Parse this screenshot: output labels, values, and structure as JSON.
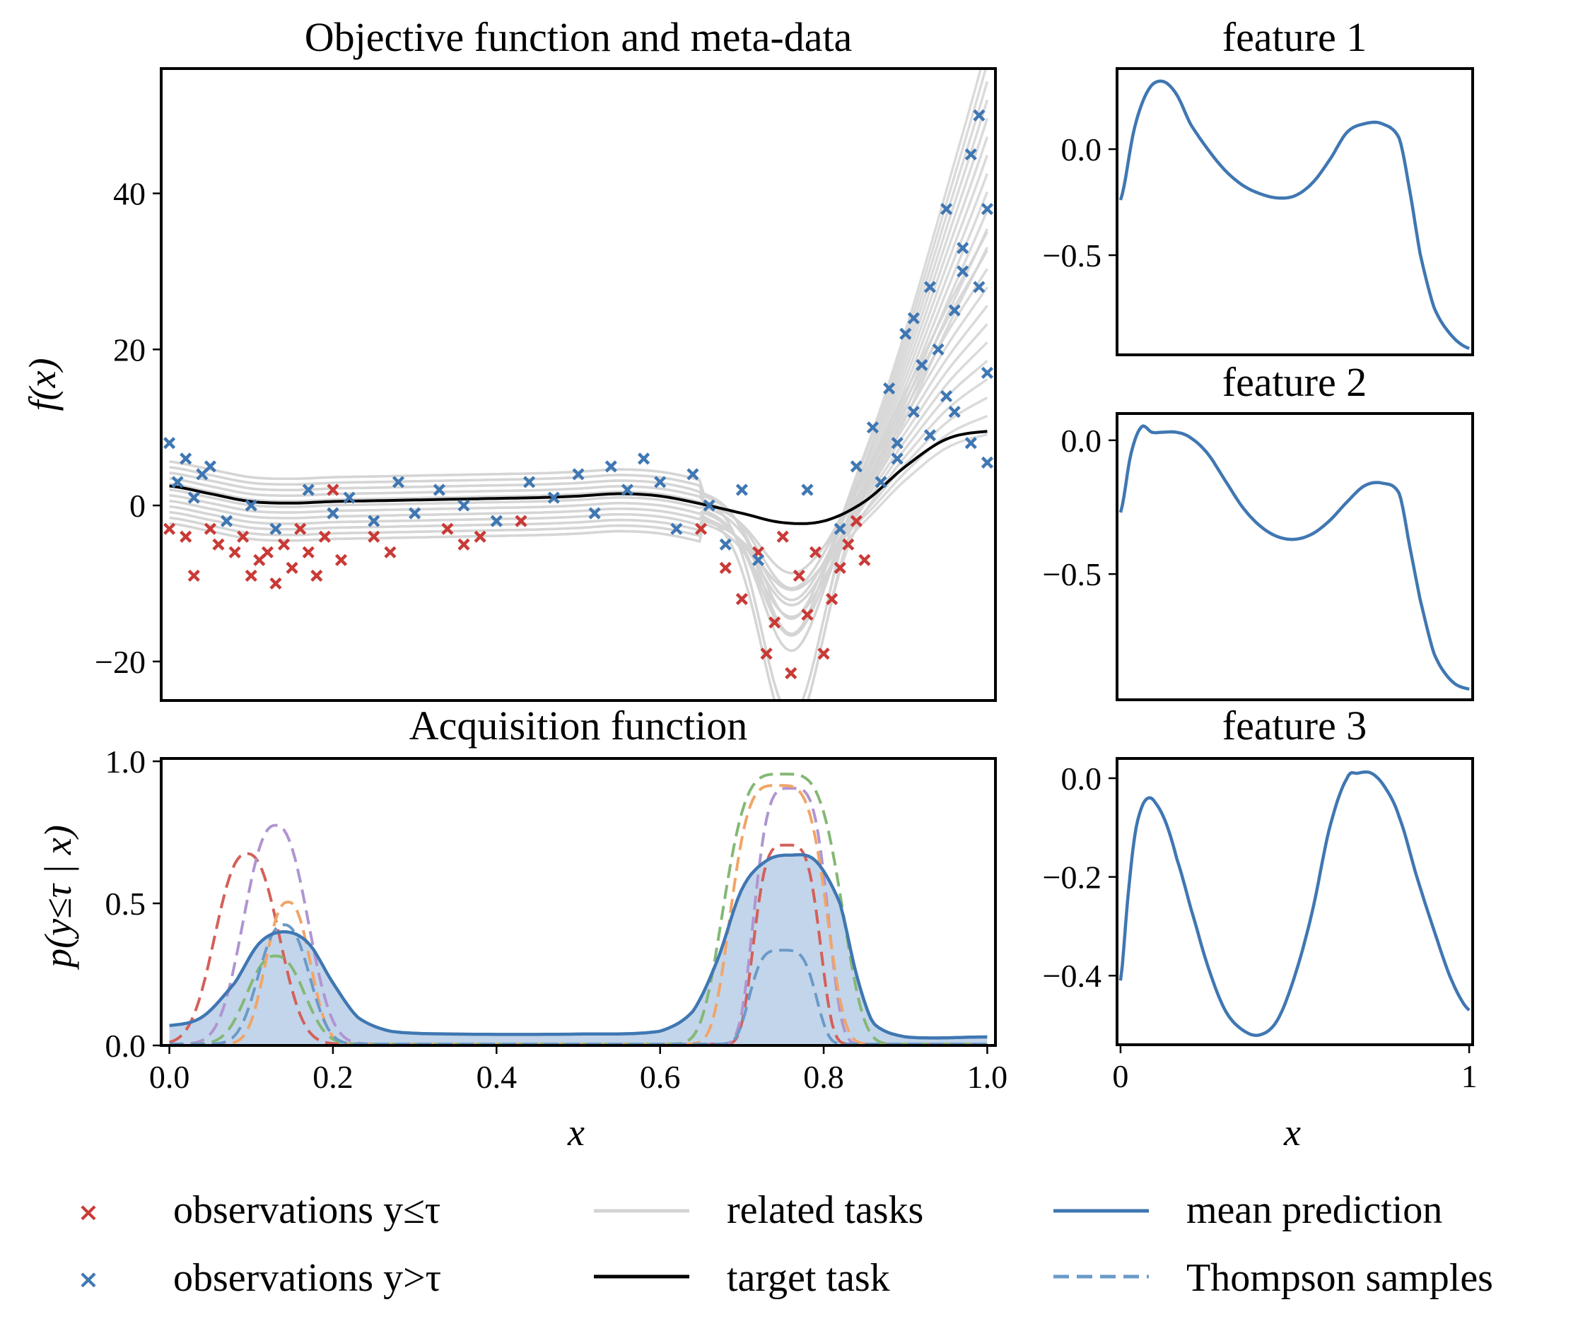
{
  "figure": {
    "colors": {
      "obs_low": "#c93a36",
      "obs_high": "#3f77b2",
      "related": "#d4d4d4",
      "target": "#000000",
      "mean": "#3f77b2",
      "fill": "#c3d5ea",
      "ts_blue": "#6a9ac8",
      "ts_red": "#d4605a",
      "ts_purple": "#b095d1",
      "ts_orange": "#f1a567",
      "ts_green": "#84b876"
    },
    "legend": {
      "obs_low": "observations y≤τ",
      "obs_high": "observations y>τ",
      "related": "related tasks",
      "target": "target task",
      "mean": "mean prediction",
      "thompson": "Thompson samples"
    }
  },
  "chart_data": [
    {
      "id": "objective",
      "type": "line",
      "title": "Objective function and meta-data",
      "ylabel": "f(x)",
      "xlim": [
        -0.01,
        1.01
      ],
      "ylim": [
        -25,
        56
      ],
      "yticks": [
        "40",
        "20",
        "0",
        "−20"
      ],
      "ytick_values": [
        40,
        20,
        0,
        -20
      ],
      "target_task": {
        "x": [
          0.0,
          0.05,
          0.1,
          0.15,
          0.2,
          0.25,
          0.3,
          0.35,
          0.4,
          0.45,
          0.5,
          0.55,
          0.6,
          0.65,
          0.7,
          0.75,
          0.8,
          0.85,
          0.9,
          0.95,
          1.0
        ],
        "y": [
          2.5,
          1.5,
          0.5,
          0.3,
          0.5,
          0.6,
          0.7,
          0.8,
          0.9,
          1.0,
          1.2,
          1.5,
          1.2,
          0.2,
          -1.0,
          -2.2,
          -2.0,
          0.5,
          5.0,
          8.5,
          9.5
        ]
      },
      "related_tasks_count": 24,
      "observations_low": {
        "x": [
          0.0,
          0.02,
          0.03,
          0.05,
          0.06,
          0.08,
          0.09,
          0.1,
          0.11,
          0.12,
          0.13,
          0.14,
          0.15,
          0.16,
          0.17,
          0.18,
          0.19,
          0.2,
          0.21,
          0.25,
          0.27,
          0.34,
          0.36,
          0.38,
          0.43,
          0.65,
          0.68,
          0.7,
          0.72,
          0.73,
          0.74,
          0.75,
          0.76,
          0.77,
          0.78,
          0.79,
          0.8,
          0.81,
          0.82,
          0.83,
          0.84,
          0.85
        ],
        "y": [
          -3.0,
          -4.0,
          -9.0,
          -3.0,
          -5.0,
          -6.0,
          -4.0,
          -9.0,
          -7.0,
          -6.0,
          -10.0,
          -5.0,
          -8.0,
          -3.0,
          -6.0,
          -9.0,
          -4.0,
          2.0,
          -7.0,
          -4.0,
          -6.0,
          -3.0,
          -5.0,
          -4.0,
          -2.0,
          -3.0,
          -8.0,
          -12.0,
          -6.0,
          -19.0,
          -15.0,
          -4.0,
          -21.5,
          -9.0,
          -14.0,
          -6.0,
          -19.0,
          -12.0,
          -8.0,
          -5.0,
          -2.0,
          -7.0
        ]
      },
      "observations_high": {
        "x": [
          0.0,
          0.01,
          0.02,
          0.03,
          0.04,
          0.05,
          0.07,
          0.1,
          0.13,
          0.17,
          0.2,
          0.22,
          0.25,
          0.28,
          0.3,
          0.33,
          0.36,
          0.4,
          0.44,
          0.47,
          0.5,
          0.52,
          0.54,
          0.56,
          0.58,
          0.6,
          0.62,
          0.64,
          0.66,
          0.68,
          0.7,
          0.72,
          0.78,
          0.82,
          0.84,
          0.86,
          0.87,
          0.88,
          0.89,
          0.9,
          0.91,
          0.92,
          0.93,
          0.94,
          0.95,
          0.96,
          0.97,
          0.98,
          0.99,
          1.0,
          1.0,
          0.99,
          0.97,
          0.95,
          0.93,
          0.91,
          0.89,
          0.96,
          0.98,
          1.0
        ],
        "y": [
          8.0,
          3.0,
          6.0,
          1.0,
          4.0,
          5.0,
          -2.0,
          0.0,
          -3.0,
          2.0,
          -1.0,
          1.0,
          -2.0,
          3.0,
          -1.0,
          2.0,
          0.0,
          -2.0,
          3.0,
          1.0,
          4.0,
          -1.0,
          5.0,
          2.0,
          6.0,
          3.0,
          -3.0,
          4.0,
          0.0,
          -5.0,
          2.0,
          -7.0,
          2.0,
          -3.0,
          5.0,
          10.0,
          3.0,
          15.0,
          8.0,
          22.0,
          12.0,
          18.0,
          28.0,
          20.0,
          38.0,
          25.0,
          33.0,
          45.0,
          28.0,
          38.0,
          17.0,
          50.0,
          30.0,
          14.0,
          9.0,
          24.0,
          6.0,
          12.0,
          8.0,
          5.5
        ]
      }
    },
    {
      "id": "acquisition",
      "type": "area",
      "title": "Acquisition function",
      "ylabel": "p(y≤τ | x)",
      "xlabel": "x",
      "xlim": [
        -0.01,
        1.01
      ],
      "ylim": [
        0,
        1.01
      ],
      "xticks": [
        "0.0",
        "0.2",
        "0.4",
        "0.6",
        "0.8",
        "1.0"
      ],
      "xtick_values": [
        0.0,
        0.2,
        0.4,
        0.6,
        0.8,
        1.0
      ],
      "yticks": [
        "1.0",
        "0.5",
        "0.0"
      ],
      "ytick_values": [
        1.0,
        0.5,
        0.0
      ],
      "mean_prediction": {
        "x": [
          0.0,
          0.04,
          0.08,
          0.11,
          0.14,
          0.17,
          0.2,
          0.23,
          0.27,
          0.35,
          0.5,
          0.6,
          0.64,
          0.67,
          0.7,
          0.73,
          0.76,
          0.79,
          0.82,
          0.84,
          0.86,
          0.9,
          1.0
        ],
        "y": [
          0.07,
          0.1,
          0.22,
          0.36,
          0.4,
          0.36,
          0.22,
          0.1,
          0.05,
          0.04,
          0.04,
          0.05,
          0.12,
          0.3,
          0.55,
          0.65,
          0.67,
          0.65,
          0.5,
          0.25,
          0.08,
          0.03,
          0.03
        ]
      },
      "thompson_samples": [
        {
          "color": "ts_red",
          "center": 0.095,
          "peak": 0.67,
          "width": 0.05,
          "center2": 0.755,
          "peak2": 0.7,
          "width2": 0.045
        },
        {
          "color": "ts_purple",
          "center": 0.13,
          "peak": 0.77,
          "width": 0.05,
          "center2": 0.76,
          "peak2": 0.9,
          "width2": 0.05
        },
        {
          "color": "ts_orange",
          "center": 0.145,
          "peak": 0.5,
          "width": 0.035,
          "center2": 0.745,
          "peak2": 0.91,
          "width2": 0.065
        },
        {
          "color": "ts_green",
          "center": 0.13,
          "peak": 0.31,
          "width": 0.045,
          "center2": 0.75,
          "peak2": 0.95,
          "width2": 0.08
        },
        {
          "color": "ts_blue",
          "center": 0.14,
          "peak": 0.42,
          "width": 0.04,
          "center2": 0.75,
          "peak2": 0.33,
          "width2": 0.045
        }
      ]
    },
    {
      "id": "feature1",
      "type": "line",
      "title": "feature 1",
      "xlim": [
        0,
        1
      ],
      "ylim": [
        -0.97,
        0.38
      ],
      "yticks": [
        "0.0",
        "−0.5"
      ],
      "ytick_values": [
        0.0,
        -0.5
      ],
      "x": [
        0.0,
        0.04,
        0.08,
        0.12,
        0.16,
        0.2,
        0.25,
        0.3,
        0.35,
        0.4,
        0.45,
        0.5,
        0.55,
        0.6,
        0.65,
        0.7,
        0.75,
        0.8,
        0.83,
        0.86,
        0.9,
        0.95,
        1.0
      ],
      "y": [
        -0.24,
        0.1,
        0.28,
        0.32,
        0.26,
        0.12,
        0.0,
        -0.1,
        -0.17,
        -0.21,
        -0.23,
        -0.22,
        -0.16,
        -0.05,
        0.08,
        0.12,
        0.12,
        0.05,
        -0.2,
        -0.5,
        -0.75,
        -0.88,
        -0.94
      ]
    },
    {
      "id": "feature2",
      "type": "line",
      "title": "feature 2",
      "xlim": [
        0,
        1
      ],
      "ylim": [
        -0.97,
        0.1
      ],
      "yticks": [
        "0.0",
        "−0.5"
      ],
      "ytick_values": [
        0.0,
        -0.5
      ],
      "x": [
        0.0,
        0.03,
        0.06,
        0.09,
        0.12,
        0.16,
        0.2,
        0.25,
        0.3,
        0.35,
        0.4,
        0.45,
        0.5,
        0.55,
        0.6,
        0.65,
        0.7,
        0.75,
        0.8,
        0.83,
        0.86,
        0.9,
        0.95,
        1.0
      ],
      "y": [
        -0.27,
        -0.05,
        0.05,
        0.03,
        0.03,
        0.03,
        0.01,
        -0.05,
        -0.15,
        -0.25,
        -0.32,
        -0.36,
        -0.37,
        -0.35,
        -0.3,
        -0.23,
        -0.17,
        -0.16,
        -0.2,
        -0.4,
        -0.6,
        -0.8,
        -0.9,
        -0.93
      ]
    },
    {
      "id": "feature3",
      "type": "line",
      "title": "feature 3",
      "xlabel": "x",
      "xlim": [
        0,
        1
      ],
      "ylim": [
        -0.54,
        0.04
      ],
      "xticks": [
        "0",
        "1"
      ],
      "xtick_values": [
        0,
        1
      ],
      "yticks": [
        "0.0",
        "−0.2",
        "−0.4"
      ],
      "ytick_values": [
        0.0,
        -0.2,
        -0.4
      ],
      "x": [
        0.0,
        0.02,
        0.04,
        0.06,
        0.08,
        0.1,
        0.13,
        0.16,
        0.2,
        0.25,
        0.3,
        0.35,
        0.4,
        0.45,
        0.5,
        0.55,
        0.6,
        0.65,
        0.68,
        0.72,
        0.76,
        0.8,
        0.85,
        0.9,
        0.95,
        1.0
      ],
      "y": [
        -0.41,
        -0.25,
        -0.12,
        -0.06,
        -0.04,
        -0.05,
        -0.09,
        -0.16,
        -0.26,
        -0.38,
        -0.47,
        -0.51,
        -0.52,
        -0.49,
        -0.4,
        -0.27,
        -0.1,
        0.0,
        0.01,
        0.01,
        -0.02,
        -0.08,
        -0.2,
        -0.31,
        -0.41,
        -0.47
      ]
    }
  ]
}
